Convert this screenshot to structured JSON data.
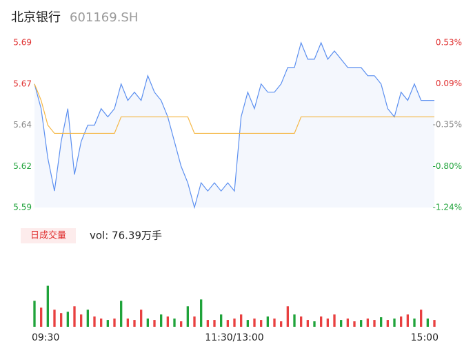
{
  "chart_data": {
    "type": "intraday",
    "title": "北京银行",
    "subtitle": "601169.SH",
    "xlim": [
      0,
      60
    ],
    "xticks": [
      {
        "value": 0,
        "label": "09:30"
      },
      {
        "value": 30,
        "label": "11:30/13:00"
      },
      {
        "value": 60,
        "label": "15:00"
      }
    ],
    "ylim": [
      5.59,
      5.69
    ],
    "yticks": [
      {
        "value": 5.59,
        "label": "5.59"
      },
      {
        "value": 5.615,
        "label": "5.62"
      },
      {
        "value": 5.64,
        "label": "5.64"
      },
      {
        "value": 5.665,
        "label": "5.67"
      },
      {
        "value": 5.69,
        "label": "5.69"
      }
    ],
    "y2lim": [
      -1.24,
      0.53
    ],
    "y2ticks": [
      {
        "value": -1.24,
        "label": "-1.24%"
      },
      {
        "value": -0.8,
        "label": "-0.80%"
      },
      {
        "value": -0.35,
        "label": "-0.35%"
      },
      {
        "value": 0.09,
        "label": "0.09%"
      },
      {
        "value": 0.53,
        "label": "0.53%"
      }
    ],
    "tick_colors": [
      "#1fa33a",
      "#1fa33a",
      "#888888",
      "#e03030",
      "#e03030"
    ],
    "series": [
      {
        "name": "price",
        "color": "#5b8ff0",
        "values": [
          5.665,
          5.65,
          5.62,
          5.6,
          5.63,
          5.65,
          5.61,
          5.63,
          5.64,
          5.64,
          5.65,
          5.645,
          5.65,
          5.665,
          5.655,
          5.66,
          5.655,
          5.67,
          5.66,
          5.655,
          5.645,
          5.63,
          5.615,
          5.605,
          5.59,
          5.605,
          5.6,
          5.605,
          5.6,
          5.605,
          5.6,
          5.645,
          5.66,
          5.65,
          5.665,
          5.66,
          5.66,
          5.665,
          5.675,
          5.675,
          5.69,
          5.68,
          5.68,
          5.69,
          5.68,
          5.685,
          5.68,
          5.675,
          5.675,
          5.675,
          5.67,
          5.67,
          5.665,
          5.65,
          5.645,
          5.66,
          5.655,
          5.665,
          5.655,
          5.655,
          5.655
        ]
      },
      {
        "name": "average",
        "color": "#f5b642",
        "values": [
          5.665,
          5.655,
          5.64,
          5.635,
          5.635,
          5.635,
          5.635,
          5.635,
          5.635,
          5.635,
          5.635,
          5.635,
          5.635,
          5.645,
          5.645,
          5.645,
          5.645,
          5.645,
          5.645,
          5.645,
          5.645,
          5.645,
          5.645,
          5.645,
          5.635,
          5.635,
          5.635,
          5.635,
          5.635,
          5.635,
          5.635,
          5.635,
          5.635,
          5.635,
          5.635,
          5.635,
          5.635,
          5.635,
          5.635,
          5.635,
          5.645,
          5.645,
          5.645,
          5.645,
          5.645,
          5.645,
          5.645,
          5.645,
          5.645,
          5.645,
          5.645,
          5.645,
          5.645,
          5.645,
          5.645,
          5.645,
          5.645,
          5.645,
          5.645,
          5.645,
          5.645
        ]
      }
    ],
    "volume_label": "日成交量",
    "volume_text": "vol: 76.39万手",
    "vlim": [
      0,
      110
    ],
    "volume": [
      38,
      28,
      60,
      25,
      20,
      22,
      30,
      18,
      25,
      15,
      12,
      10,
      12,
      38,
      12,
      10,
      25,
      12,
      10,
      18,
      15,
      12,
      8,
      30,
      15,
      40,
      10,
      10,
      18,
      10,
      12,
      18,
      10,
      12,
      10,
      15,
      12,
      8,
      30,
      18,
      15,
      10,
      8,
      15,
      12,
      18,
      10,
      12,
      8,
      10,
      12,
      10,
      14,
      10,
      12,
      15,
      18,
      12,
      25,
      12,
      10
    ],
    "volume_colors": [
      "#1fa33a",
      "#e84040",
      "#1fa33a",
      "#e84040",
      "#e84040",
      "#1fa33a",
      "#e84040",
      "#e84040",
      "#1fa33a",
      "#e84040",
      "#e84040",
      "#1fa33a",
      "#e84040",
      "#1fa33a",
      "#e84040",
      "#e84040",
      "#e84040",
      "#1fa33a",
      "#e84040",
      "#1fa33a",
      "#e84040",
      "#1fa33a",
      "#e84040",
      "#1fa33a",
      "#e84040",
      "#1fa33a",
      "#e84040",
      "#e84040",
      "#1fa33a",
      "#e84040",
      "#e84040",
      "#e84040",
      "#1fa33a",
      "#e84040",
      "#e84040",
      "#1fa33a",
      "#e84040",
      "#e84040",
      "#e84040",
      "#1fa33a",
      "#e84040",
      "#e84040",
      "#1fa33a",
      "#e84040",
      "#e84040",
      "#e84040",
      "#1fa33a",
      "#e84040",
      "#e84040",
      "#1fa33a",
      "#e84040",
      "#e84040",
      "#1fa33a",
      "#e84040",
      "#1fa33a",
      "#e84040",
      "#e84040",
      "#1fa33a",
      "#e84040",
      "#1fa33a",
      "#e84040"
    ]
  }
}
